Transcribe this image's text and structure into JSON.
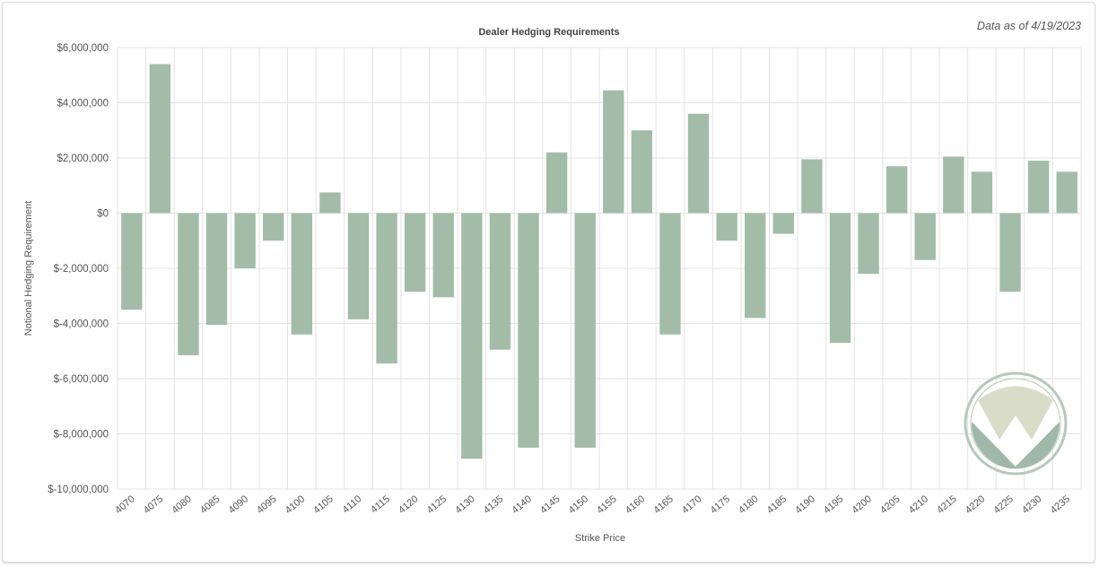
{
  "date_label": "Data as of 4/19/2023",
  "colors": {
    "bar": "#a3bca8",
    "grid": "#e3e3e3",
    "logo_ring": "#b5c9bc",
    "logo_light": "#d9dcc8",
    "logo_dark": "#9fb8a8"
  },
  "logo": {
    "name": "v-logo-icon"
  },
  "chart_data": {
    "type": "bar",
    "title": "Dealer Hedging Requirements",
    "xlabel": "Strike Price",
    "ylabel": "Notional Hedging Requirement",
    "ylim": [
      -10000000,
      6000000
    ],
    "grid": true,
    "yticks": [
      {
        "value": 6000000,
        "label": "$6,000,000"
      },
      {
        "value": 4000000,
        "label": "$4,000,000"
      },
      {
        "value": 2000000,
        "label": "$2,000,000"
      },
      {
        "value": 0,
        "label": "$0"
      },
      {
        "value": -2000000,
        "label": "$-2,000,000"
      },
      {
        "value": -4000000,
        "label": "$-4,000,000"
      },
      {
        "value": -6000000,
        "label": "$-6,000,000"
      },
      {
        "value": -8000000,
        "label": "$-8,000,000"
      },
      {
        "value": -10000000,
        "label": "$-10,000,000"
      }
    ],
    "categories": [
      "4070",
      "4075",
      "4080",
      "4085",
      "4090",
      "4095",
      "4100",
      "4105",
      "4110",
      "4115",
      "4120",
      "4125",
      "4130",
      "4135",
      "4140",
      "4145",
      "4150",
      "4155",
      "4160",
      "4165",
      "4170",
      "4175",
      "4180",
      "4185",
      "4190",
      "4195",
      "4200",
      "4205",
      "4210",
      "4215",
      "4220",
      "4225",
      "4230",
      "4235"
    ],
    "values": [
      -3500000,
      5400000,
      -5150000,
      -4050000,
      -2000000,
      -1000000,
      -4400000,
      750000,
      -3850000,
      -5450000,
      -2850000,
      -3050000,
      -8900000,
      -4950000,
      -8500000,
      2200000,
      -8500000,
      4450000,
      3000000,
      -4400000,
      3600000,
      -1000000,
      -3800000,
      -750000,
      1950000,
      -4700000,
      -2200000,
      1700000,
      -1700000,
      2050000,
      1500000,
      -2850000,
      1900000,
      1500000
    ]
  }
}
